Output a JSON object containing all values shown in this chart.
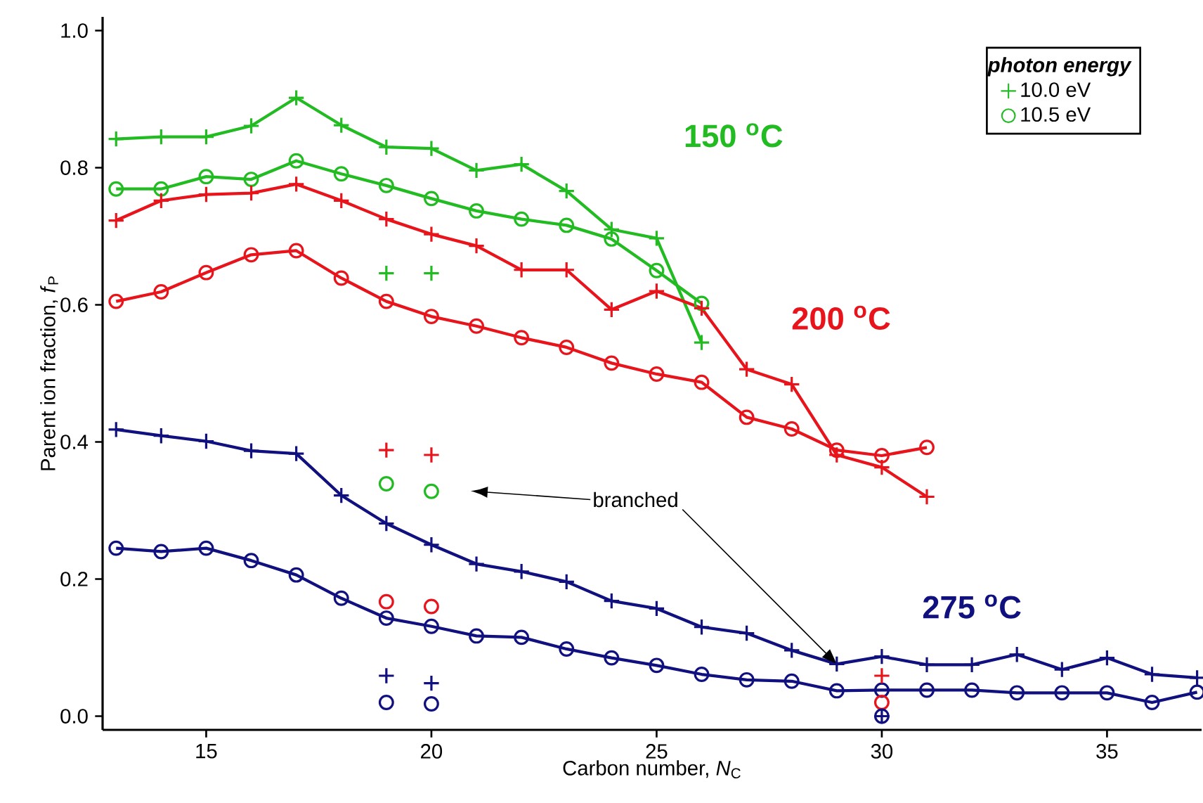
{
  "chart_data": {
    "type": "line",
    "xlabel": "Carbon number, *N*$_{C}$",
    "ylabel": "Parent ion fraction, *f*$_{P}$",
    "legend_title": "photon energy",
    "legend": "top right",
    "grid": false,
    "line_style": "solid",
    "xlim": [
      12.7,
      37.1
    ],
    "ylim": [
      -0.02,
      1.02
    ],
    "xticks": [
      15,
      20,
      25,
      30,
      35
    ],
    "yticks": [
      {
        "value": 0,
        "label": "0.0"
      },
      {
        "value": 0.2,
        "label": "0.2"
      },
      {
        "value": 0.4,
        "label": "0.4"
      },
      {
        "value": 0.6,
        "label": "0.6"
      },
      {
        "value": 0.8,
        "label": "0.8"
      },
      {
        "value": 1.0,
        "label": "1.0"
      }
    ],
    "series": [
      {
        "name": "10.0 eV",
        "color": "#22bb22",
        "marker": "cross",
        "x": [
          13,
          14,
          15,
          16,
          17,
          18,
          19,
          20,
          21,
          22,
          23,
          24,
          25,
          26
        ],
        "values": [
          0.842,
          0.845,
          0.845,
          0.861,
          0.902,
          0.862,
          0.83,
          0.828,
          0.796,
          0.805,
          0.766,
          0.71,
          0.697,
          0.545
        ]
      },
      {
        "name": "10.5 eV",
        "color": "#22bb22",
        "marker": "circle",
        "x": [
          13,
          14,
          15,
          16,
          17,
          18,
          19,
          20,
          21,
          22,
          23,
          24,
          25,
          26
        ],
        "values": [
          0.769,
          0.769,
          0.787,
          0.783,
          0.81,
          0.791,
          0.774,
          0.755,
          0.737,
          0.725,
          0.716,
          0.696,
          0.65,
          0.602
        ]
      },
      {
        "color": "#e8141c",
        "marker": "cross",
        "x": [
          13,
          14,
          15,
          16,
          17,
          18,
          19,
          20,
          21,
          22,
          23,
          24,
          25,
          26,
          27,
          28,
          29,
          30,
          31
        ],
        "values": [
          0.723,
          0.752,
          0.761,
          0.763,
          0.776,
          0.752,
          0.725,
          0.703,
          0.686,
          0.651,
          0.651,
          0.593,
          0.62,
          0.595,
          0.506,
          0.484,
          0.381,
          0.363,
          0.32
        ]
      },
      {
        "color": "#e8141c",
        "marker": "circle",
        "x": [
          13,
          14,
          15,
          16,
          17,
          18,
          19,
          20,
          21,
          22,
          23,
          24,
          25,
          26,
          27,
          28,
          29,
          30,
          31
        ],
        "values": [
          0.605,
          0.619,
          0.647,
          0.673,
          0.679,
          0.639,
          0.605,
          0.583,
          0.569,
          0.552,
          0.538,
          0.515,
          0.499,
          0.487,
          0.436,
          0.419,
          0.388,
          0.38,
          0.392
        ]
      },
      {
        "color": "#10107f",
        "marker": "cross",
        "x": [
          13,
          14,
          15,
          16,
          17,
          18,
          19,
          20,
          21,
          22,
          23,
          24,
          25,
          26,
          27,
          28,
          29,
          30,
          31,
          32,
          33,
          34,
          35,
          36,
          37
        ],
        "values": [
          0.418,
          0.409,
          0.401,
          0.387,
          0.383,
          0.322,
          0.281,
          0.25,
          0.222,
          0.211,
          0.196,
          0.168,
          0.157,
          0.13,
          0.121,
          0.096,
          0.076,
          0.087,
          0.075,
          0.075,
          0.09,
          0.068,
          0.085,
          0.061,
          0.056
        ]
      },
      {
        "color": "#10107f",
        "marker": "circle",
        "x": [
          13,
          14,
          15,
          16,
          17,
          18,
          19,
          20,
          21,
          22,
          23,
          24,
          25,
          26,
          27,
          28,
          29,
          30,
          31,
          32,
          33,
          34,
          35,
          36,
          37
        ],
        "values": [
          0.245,
          0.24,
          0.245,
          0.227,
          0.206,
          0.172,
          0.143,
          0.131,
          0.117,
          0.115,
          0.098,
          0.085,
          0.074,
          0.061,
          0.053,
          0.051,
          0.037,
          0.038,
          0.038,
          0.038,
          0.034,
          0.034,
          0.034,
          0.02,
          0.035
        ]
      },
      {
        "type": "scatter",
        "color": "#22bb22",
        "marker": "cross",
        "x": [
          19,
          20
        ],
        "values": [
          0.646,
          0.646
        ]
      },
      {
        "type": "scatter",
        "color": "#22bb22",
        "marker": "circle",
        "x": [
          19,
          20
        ],
        "values": [
          0.339,
          0.328
        ]
      },
      {
        "type": "scatter",
        "color": "#e8141c",
        "marker": "cross",
        "x": [
          19,
          20,
          30
        ],
        "values": [
          0.388,
          0.381,
          0.059
        ]
      },
      {
        "type": "scatter",
        "color": "#e8141c",
        "marker": "circle",
        "x": [
          19,
          20,
          30
        ],
        "values": [
          0.167,
          0.16,
          0.02
        ]
      },
      {
        "type": "scatter",
        "color": "#10107f",
        "marker": "cross",
        "x": [
          19,
          20,
          30
        ],
        "values": [
          0.059,
          0.048,
          0.0
        ]
      },
      {
        "type": "scatter",
        "color": "#10107f",
        "marker": "circle",
        "x": [
          19,
          20,
          30
        ],
        "values": [
          0.02,
          0.018,
          0.0
        ]
      }
    ],
    "annotations": [
      "150 $^{o}$C",
      "200 $^{o}$C",
      "275 $^{o}$C",
      {
        "text": "branched",
        "x": 29,
        "y": 0.076
      }
    ]
  }
}
